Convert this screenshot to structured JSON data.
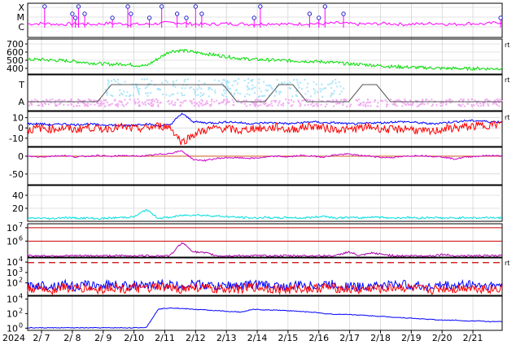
{
  "chart_data": [
    {
      "type": "line",
      "y_tick_labels": [
        "X",
        "M",
        "C"
      ],
      "series": [
        {
          "color": "#ff00ff",
          "marker": "circle",
          "values": [
            0.55,
            0.6,
            0.5,
            0.58,
            0.5,
            0.62,
            0.55,
            0.5,
            0.6,
            0.7,
            0.55,
            0.5,
            0.58,
            0.55,
            0.52,
            0.6,
            0.5,
            0.58,
            0.55,
            0.65,
            0.52,
            0.55,
            0.6,
            0.5,
            0.55,
            0.62,
            0.5,
            0.6,
            0.55,
            0.75
          ]
        }
      ],
      "peak_days": [
        7.1,
        8.0,
        8.1,
        8.2,
        8.4,
        9.3,
        9.8,
        9.9,
        10.5,
        10.9,
        11.4,
        11.7,
        12.0,
        12.2,
        13.9,
        14.1,
        15.7,
        16.0,
        16.2,
        16.8,
        21.9
      ]
    },
    {
      "type": "line",
      "y_ticks": [
        400,
        500,
        600,
        700
      ],
      "ylim": [
        330,
        760
      ],
      "series": [
        {
          "color": "#00dd00",
          "values": [
            505,
            510,
            500,
            495,
            485,
            470,
            460,
            450,
            455,
            440,
            430,
            520,
            610,
            620,
            600,
            580,
            560,
            540,
            520,
            510,
            505,
            500,
            495,
            490,
            485,
            480,
            470,
            455,
            450,
            440,
            430,
            420,
            415,
            410,
            405,
            400,
            400,
            395,
            400,
            395,
            400
          ]
        }
      ]
    },
    {
      "type": "line",
      "y_tick_labels": [
        "T",
        "A"
      ],
      "series": [
        {
          "name": "",
          "color": "#555555",
          "values": [
            0,
            0,
            0,
            0,
            0,
            0,
            1,
            1,
            1,
            1,
            1,
            1,
            1,
            1,
            1,
            0,
            0,
            0,
            1,
            1,
            0,
            0,
            0,
            0,
            1,
            1,
            0,
            0,
            0,
            0,
            0,
            0,
            0,
            0,
            0
          ]
        }
      ]
    },
    {
      "type": "line",
      "y_ticks": [
        -10,
        0,
        10
      ],
      "ylim": [
        -18,
        16
      ],
      "series": [
        {
          "color": "#0000ff",
          "values": [
            4,
            4,
            3,
            4,
            3,
            4,
            3,
            3,
            2,
            3,
            4,
            2,
            3,
            14,
            6,
            5,
            5,
            6,
            5,
            4,
            5,
            5,
            4,
            5,
            6,
            5,
            5,
            4,
            4,
            5,
            5,
            6,
            6,
            5,
            4,
            5,
            6,
            7,
            7,
            6,
            6
          ]
        },
        {
          "color": "#ff0000",
          "values": [
            -2,
            0,
            -1,
            0,
            -2,
            1,
            -1,
            0,
            1,
            -1,
            0,
            2,
            1,
            -14,
            -6,
            -2,
            0,
            -1,
            -3,
            0,
            -1,
            1,
            -2,
            0,
            2,
            0,
            -1,
            -2,
            0,
            1,
            -1,
            -2,
            0,
            -3,
            -4,
            -1,
            0,
            1,
            2,
            3,
            4
          ]
        }
      ]
    },
    {
      "type": "line",
      "y_ticks": [
        -50,
        0
      ],
      "ylim": [
        -80,
        25
      ],
      "series": [
        {
          "color": "#cc00cc",
          "values": [
            0,
            -2,
            0,
            2,
            -2,
            0,
            2,
            -1,
            2,
            0,
            1,
            5,
            8,
            15,
            -10,
            -12,
            -6,
            -4,
            -5,
            -6,
            -3,
            0,
            -2,
            2,
            0,
            -2,
            4,
            6,
            2,
            0,
            -4,
            -3,
            0,
            2,
            0,
            -2,
            -8,
            -2,
            0,
            2,
            0
          ]
        }
      ]
    },
    {
      "type": "line",
      "y_ticks": [
        20,
        40
      ],
      "ylim": [
        0,
        55
      ],
      "series": [
        {
          "color": "#00dddd",
          "values": [
            4,
            5,
            4,
            6,
            5,
            5,
            4,
            5,
            6,
            7,
            18,
            5,
            6,
            9,
            10,
            9,
            8,
            7,
            6,
            5,
            6,
            5,
            6,
            5,
            6,
            8,
            5,
            6,
            5,
            7,
            6,
            5,
            6,
            5,
            6,
            5,
            5,
            6,
            5,
            6,
            5
          ]
        }
      ]
    },
    {
      "type": "line",
      "y_ticks": [
        "10^6",
        "10^7"
      ],
      "ylim_log10": [
        4.8,
        7.3
      ],
      "reference_lines": [
        6,
        7
      ],
      "series": [
        {
          "color": "#aa00aa",
          "values": [
            4.9,
            4.9,
            4.9,
            4.9,
            4.9,
            4.9,
            4.9,
            4.9,
            4.9,
            4.9,
            4.9,
            4.9,
            4.9,
            5.9,
            5.2,
            5.1,
            4.9,
            4.9,
            4.9,
            4.9,
            4.9,
            4.9,
            4.9,
            4.9,
            4.9,
            4.9,
            4.9,
            5.2,
            4.9,
            5.1,
            5.0,
            4.9,
            4.9,
            4.9,
            4.9,
            5.0,
            4.9,
            4.9,
            4.9,
            4.9,
            4.9
          ]
        }
      ]
    },
    {
      "type": "line",
      "y_ticks": [
        "10^2",
        "10^3",
        "10^4"
      ],
      "ylim_log10": [
        0.8,
        4.4
      ],
      "reference_lines": [
        3.95
      ],
      "series": [
        {
          "color": "#0000ff",
          "values": [
            1.6,
            1.8,
            1.7,
            1.9,
            1.6,
            1.8,
            1.7,
            1.9,
            1.7,
            1.8,
            1.6,
            1.9,
            1.8,
            1.7,
            1.9,
            1.8,
            1.6,
            1.8,
            1.7,
            1.9,
            1.8,
            1.7,
            1.6,
            1.8,
            1.7,
            1.9,
            1.8,
            1.7,
            1.6,
            1.8,
            1.7,
            1.9,
            1.8,
            1.7,
            1.6,
            1.8,
            1.7,
            1.9,
            1.8,
            1.7,
            1.8
          ]
        },
        {
          "color": "#ff0000",
          "values": [
            1.4,
            1.5,
            1.3,
            1.6,
            1.4,
            1.5,
            1.3,
            1.6,
            1.4,
            1.5,
            1.4,
            1.6,
            1.5,
            1.4,
            1.6,
            1.5,
            1.3,
            1.5,
            1.4,
            1.6,
            1.5,
            1.4,
            1.3,
            1.5,
            1.4,
            1.6,
            1.5,
            1.4,
            1.3,
            1.5,
            1.4,
            1.6,
            1.5,
            1.4,
            1.3,
            1.5,
            1.4,
            1.6,
            1.5,
            1.4,
            1.5
          ]
        }
      ]
    },
    {
      "type": "line",
      "y_ticks": [
        "10^0",
        "10^2",
        "10^4"
      ],
      "ylim_log10": [
        -0.3,
        4.4
      ],
      "series": [
        {
          "color": "#0000ff",
          "values": [
            0.05,
            0.05,
            0.05,
            0.05,
            0.05,
            0.05,
            0.05,
            0.05,
            0.05,
            0.05,
            0.1,
            2.6,
            2.8,
            2.7,
            2.6,
            2.5,
            2.4,
            2.3,
            2.2,
            2.6,
            2.5,
            2.5,
            2.4,
            2.3,
            2.2,
            2.0,
            1.9,
            1.9,
            1.8,
            1.7,
            1.6,
            1.5,
            1.4,
            1.3,
            1.2,
            1.1,
            1.1,
            1.0,
            1.0,
            0.9,
            0.9
          ]
        }
      ]
    }
  ],
  "x_axis": {
    "start_label": "2024",
    "tick_labels": [
      "2/ 7",
      "2/ 8",
      "2/ 9",
      "2/10",
      "2/11",
      "2/12",
      "2/13",
      "2/14",
      "2/15",
      "2/16",
      "2/17",
      "2/18",
      "2/19",
      "2/20",
      "2/21"
    ],
    "first_tick_day": 7,
    "start_day": 6.55,
    "end_day": 21.95
  },
  "right_labels": [
    "rt",
    "rt",
    "rt",
    "rt"
  ],
  "colors": {
    "frame": "#000000",
    "grid": "#c8c8c8",
    "background": "#ffffff"
  }
}
